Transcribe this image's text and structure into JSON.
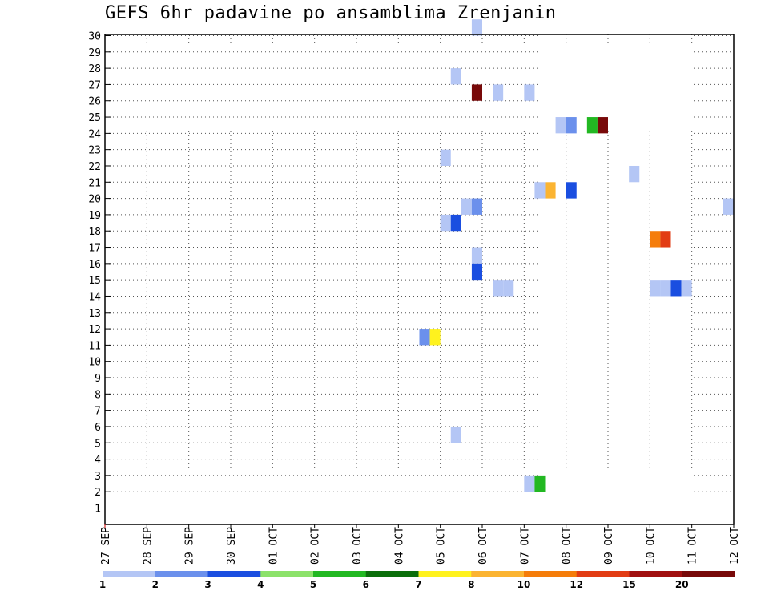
{
  "chart_data": {
    "type": "heatmap",
    "title": "GEFS 6hr padavine po ansamblima Zrenjanin",
    "xlabel": "",
    "ylabel": "",
    "x_tick_labels": [
      "27 SEP",
      "28 SEP",
      "29 SEP",
      "30 SEP",
      "01 OCT",
      "02 OCT",
      "03 OCT",
      "04 OCT",
      "05 OCT",
      "06 OCT",
      "07 OCT",
      "08 OCT",
      "09 OCT",
      "10 OCT",
      "11 OCT",
      "12 OCT"
    ],
    "x_range_days": [
      0,
      15
    ],
    "y_tick_labels": [
      "1",
      "2",
      "3",
      "4",
      "5",
      "6",
      "7",
      "8",
      "9",
      "10",
      "11",
      "12",
      "13",
      "14",
      "15",
      "16",
      "17",
      "18",
      "19",
      "20",
      "21",
      "22",
      "23",
      "24",
      "25",
      "26",
      "27",
      "28",
      "29",
      "30"
    ],
    "y_range": [
      1,
      30
    ],
    "grid": true,
    "legend": {
      "placement": "bottom",
      "colors": [
        "#b4c6f5",
        "#6b90ec",
        "#1a4ee0",
        "#8ce26a",
        "#22b822",
        "#0b6e0b",
        "#fff21e",
        "#fbb432",
        "#f57d0a",
        "#e23c14",
        "#a11010",
        "#780909"
      ],
      "labels": [
        "1",
        "2",
        "3",
        "4",
        "5",
        "6",
        "7",
        "8",
        "10",
        "12",
        "15",
        "20"
      ]
    },
    "cells": [
      {
        "time": "06 OCT 00Z",
        "member": 30,
        "value": 1
      },
      {
        "time": "05 OCT 12Z",
        "member": 27,
        "value": 1
      },
      {
        "time": "06 OCT 00Z",
        "member": 26,
        "value": 20
      },
      {
        "time": "06 OCT 12Z",
        "member": 26,
        "value": 1
      },
      {
        "time": "07 OCT 06Z",
        "member": 26,
        "value": 1
      },
      {
        "time": "08 OCT 00Z",
        "member": 24,
        "value": 1
      },
      {
        "time": "08 OCT 06Z",
        "member": 24,
        "value": 2
      },
      {
        "time": "08 OCT 18Z",
        "member": 24,
        "value": 5
      },
      {
        "time": "09 OCT 00Z",
        "member": 24,
        "value": 20
      },
      {
        "time": "05 OCT 06Z",
        "member": 22,
        "value": 1
      },
      {
        "time": "09 OCT 18Z",
        "member": 21,
        "value": 1
      },
      {
        "time": "07 OCT 12Z",
        "member": 20,
        "value": 1
      },
      {
        "time": "07 OCT 18Z",
        "member": 20,
        "value": 8
      },
      {
        "time": "08 OCT 06Z",
        "member": 20,
        "value": 3
      },
      {
        "time": "05 OCT 18Z",
        "member": 19,
        "value": 1
      },
      {
        "time": "06 OCT 00Z",
        "member": 19,
        "value": 2
      },
      {
        "time": "12 OCT 00Z",
        "member": 19,
        "value": 1
      },
      {
        "time": "05 OCT 06Z",
        "member": 18,
        "value": 1
      },
      {
        "time": "05 OCT 12Z",
        "member": 18,
        "value": 3
      },
      {
        "time": "10 OCT 06Z",
        "member": 17,
        "value": 10
      },
      {
        "time": "10 OCT 12Z",
        "member": 17,
        "value": 12
      },
      {
        "time": "06 OCT 00Z",
        "member": 16,
        "value": 1
      },
      {
        "time": "06 OCT 00Z",
        "member": 15,
        "value": 3
      },
      {
        "time": "06 OCT 12Z",
        "member": 14,
        "value": 1
      },
      {
        "time": "06 OCT 18Z",
        "member": 14,
        "value": 1
      },
      {
        "time": "10 OCT 06Z",
        "member": 14,
        "value": 1
      },
      {
        "time": "10 OCT 12Z",
        "member": 14,
        "value": 1
      },
      {
        "time": "10 OCT 18Z",
        "member": 14,
        "value": 3
      },
      {
        "time": "11 OCT 00Z",
        "member": 14,
        "value": 1
      },
      {
        "time": "04 OCT 18Z",
        "member": 11,
        "value": 2
      },
      {
        "time": "05 OCT 00Z",
        "member": 11,
        "value": 7
      },
      {
        "time": "05 OCT 12Z",
        "member": 5,
        "value": 1
      },
      {
        "time": "07 OCT 06Z",
        "member": 2,
        "value": 1
      },
      {
        "time": "07 OCT 12Z",
        "member": 2,
        "value": 5
      }
    ]
  }
}
